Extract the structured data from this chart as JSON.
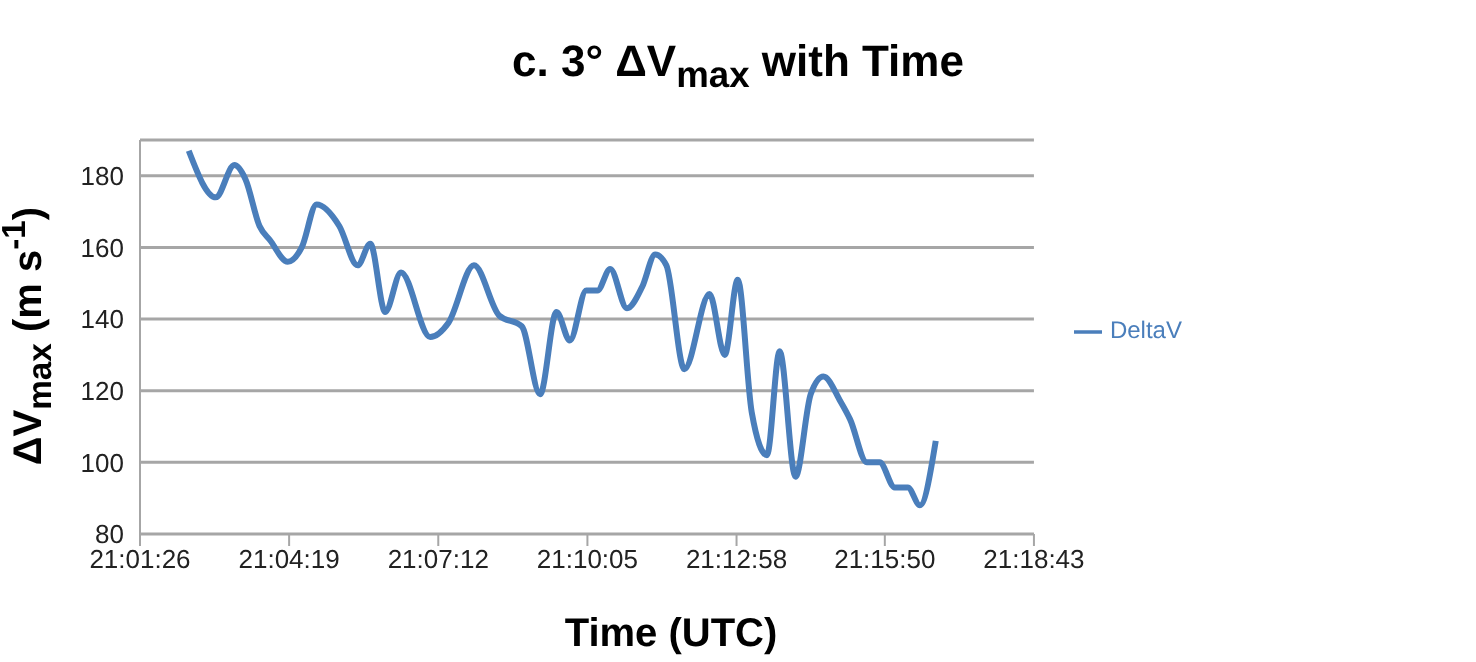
{
  "chart_data": {
    "type": "line",
    "title": "c. 3° ΔV$_{max}$ with Time",
    "xlabel": "Time (UTC)",
    "ylabel": "ΔV$_{max}$ (m s$^{-1}$)",
    "x": [
      21.0396,
      21.0483,
      21.0543,
      21.0579,
      21.0624,
      21.0658,
      21.0715,
      21.076,
      21.0808,
      21.0881,
      21.094,
      21.0981,
      21.1029,
      21.108,
      21.1174,
      21.1233,
      21.1315,
      21.1396,
      21.1469,
      21.1528,
      21.1581,
      21.1624,
      21.1677,
      21.1713,
      21.1754,
      21.1808,
      21.1857,
      21.1899,
      21.1935,
      21.1993,
      21.2074,
      21.2123,
      21.2165,
      21.221,
      21.2259,
      21.23,
      21.2351,
      21.24,
      21.2441,
      21.2496,
      21.2527,
      21.2581,
      21.2622,
      21.2671,
      21.2713,
      21.2752,
      21.2803
    ],
    "series": [
      {
        "name": "DeltaV",
        "color": "#4a7ebb",
        "values": [
          187,
          174,
          183,
          179,
          166,
          162,
          156,
          160,
          172,
          166,
          155,
          161,
          142,
          153,
          135,
          139,
          155,
          141,
          138,
          119,
          142,
          134,
          148,
          148,
          154,
          143,
          149,
          158,
          155,
          126,
          147,
          130,
          151,
          114,
          102,
          131,
          96,
          119,
          124,
          117,
          112,
          100,
          100,
          93,
          93,
          88,
          106
        ]
      }
    ],
    "xlim": [
      21.02389,
      21.31194
    ],
    "xticks": [
      {
        "value": 21.02389,
        "label": "21:01:26"
      },
      {
        "value": 21.07194,
        "label": "21:04:19"
      },
      {
        "value": 21.12,
        "label": "21:07:12"
      },
      {
        "value": 21.16806,
        "label": "21:10:05"
      },
      {
        "value": 21.21611,
        "label": "21:12:58"
      },
      {
        "value": 21.26389,
        "label": "21:15:50"
      },
      {
        "value": 21.31194,
        "label": "21:18:43"
      }
    ],
    "ylim": [
      80,
      190
    ],
    "yticks": [
      80,
      100,
      120,
      140,
      160,
      180
    ],
    "grid": "y",
    "legend": "right",
    "marker": "none",
    "line_style": "solid"
  }
}
